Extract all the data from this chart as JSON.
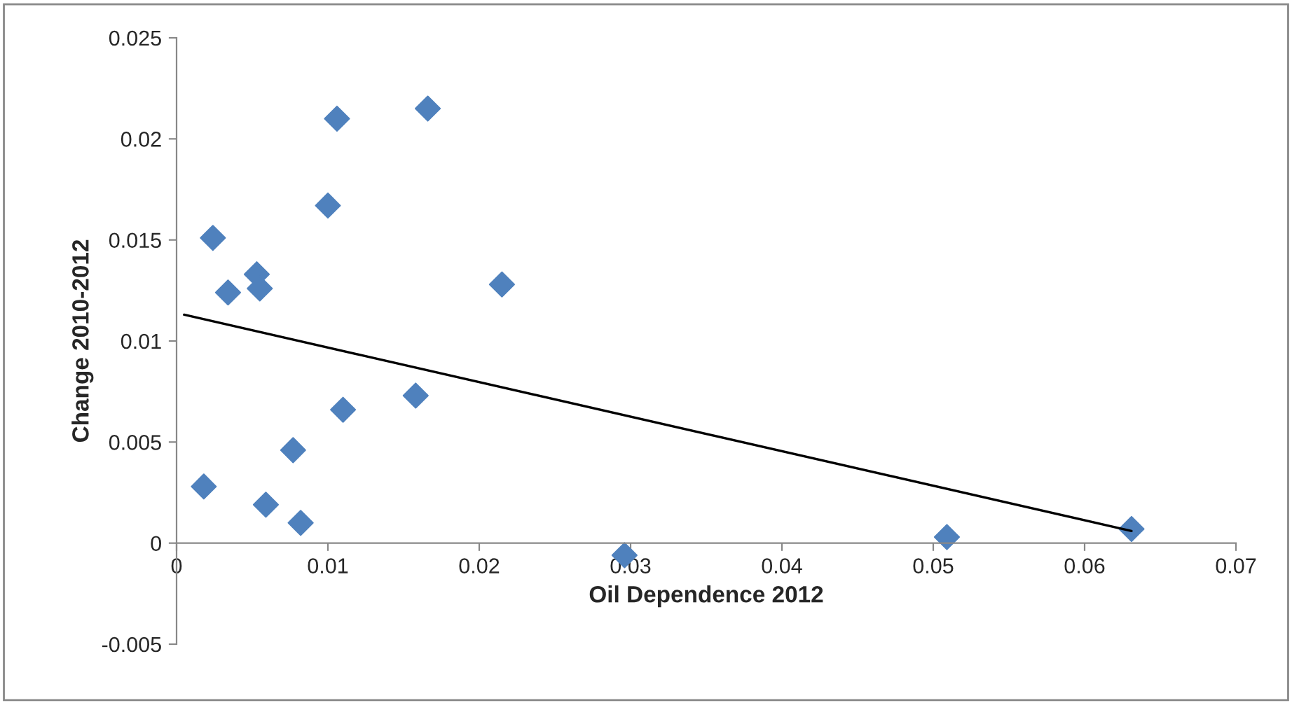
{
  "chart_data": {
    "type": "scatter",
    "xlabel": "Oil Dependence 2012",
    "ylabel": "Change 2010-2012",
    "marker": "diamond",
    "grid": false,
    "legend": false,
    "xlim": [
      0,
      0.07
    ],
    "xticks": [
      0,
      0.01,
      0.02,
      0.03,
      0.04,
      0.05,
      0.06,
      0.07
    ],
    "ylim": [
      -0.005,
      0.025
    ],
    "yticks": [
      -0.005,
      0,
      0.005,
      0.01,
      0.015,
      0.02,
      0.025
    ],
    "series": [
      {
        "color": "#4f81bd",
        "x": [
          0.0018,
          0.0024,
          0.0034,
          0.0053,
          0.0055,
          0.0059,
          0.0077,
          0.0082,
          0.01,
          0.0106,
          0.011,
          0.0158,
          0.0166,
          0.0215,
          0.0296,
          0.0509,
          0.0631
        ],
        "values": [
          0.0028,
          0.0151,
          0.0124,
          0.0133,
          0.0126,
          0.0019,
          0.0046,
          0.001,
          0.0167,
          0.021,
          0.0066,
          0.0073,
          0.0215,
          0.0128,
          -0.0006,
          0.0003,
          0.0007
        ]
      },
      {
        "type": "line",
        "color": "#000000",
        "x": [
          0.0005,
          0.0631
        ],
        "values": [
          0.0113,
          0.0006
        ],
        "marker": "none"
      }
    ]
  }
}
